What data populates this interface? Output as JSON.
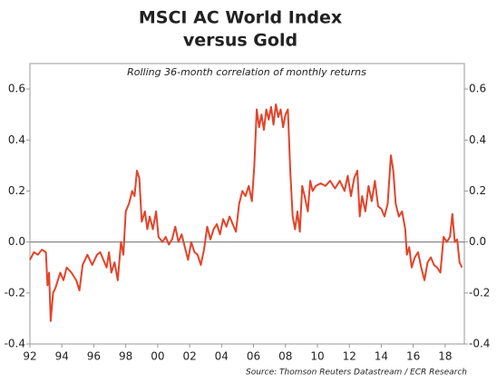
{
  "chart_data": {
    "type": "line",
    "title": [
      "MSCI AC World Index",
      "versus Gold"
    ],
    "subtitle": "Rolling 36-month correlation of monthly returns",
    "source": "Source: Thomson Reuters Datastream / ECR Research",
    "xlim": [
      1992,
      2019.2
    ],
    "xticks": [
      {
        "value": 1992,
        "label": "92"
      },
      {
        "value": 1994,
        "label": "94"
      },
      {
        "value": 1996,
        "label": "96"
      },
      {
        "value": 1998,
        "label": "98"
      },
      {
        "value": 2000,
        "label": "00"
      },
      {
        "value": 2002,
        "label": "02"
      },
      {
        "value": 2004,
        "label": "04"
      },
      {
        "value": 2006,
        "label": "06"
      },
      {
        "value": 2008,
        "label": "08"
      },
      {
        "value": 2010,
        "label": "10"
      },
      {
        "value": 2012,
        "label": "12"
      },
      {
        "value": 2014,
        "label": "14"
      },
      {
        "value": 2016,
        "label": "16"
      },
      {
        "value": 2018,
        "label": "18"
      }
    ],
    "ylim": [
      -0.4,
      0.7
    ],
    "yticks": [
      -0.4,
      -0.2,
      {
        "value": 0,
        "label": "0.0"
      },
      0.2,
      0.4,
      0.6
    ],
    "zero_line": true,
    "color": "#e2442b",
    "x": [
      1992.0,
      1992.25,
      1992.5,
      1992.75,
      1993.0,
      1993.1,
      1993.2,
      1993.3,
      1993.45,
      1993.6,
      1993.9,
      1994.1,
      1994.3,
      1994.6,
      1994.9,
      1995.1,
      1995.3,
      1995.6,
      1995.9,
      1996.2,
      1996.4,
      1996.6,
      1996.8,
      1996.95,
      1997.1,
      1997.3,
      1997.5,
      1997.7,
      1997.85,
      1998.0,
      1998.2,
      1998.4,
      1998.55,
      1998.7,
      1998.85,
      1999.0,
      1999.2,
      1999.35,
      1999.5,
      1999.7,
      1999.9,
      2000.05,
      2000.3,
      2000.5,
      2000.7,
      2000.9,
      2001.1,
      2001.3,
      2001.5,
      2001.7,
      2001.9,
      2002.1,
      2002.3,
      2002.5,
      2002.7,
      2002.9,
      2003.1,
      2003.3,
      2003.5,
      2003.7,
      2003.9,
      2004.1,
      2004.3,
      2004.5,
      2004.7,
      2004.9,
      2005.1,
      2005.3,
      2005.5,
      2005.7,
      2005.9,
      2006.05,
      2006.2,
      2006.35,
      2006.5,
      2006.65,
      2006.8,
      2006.95,
      2007.1,
      2007.25,
      2007.4,
      2007.55,
      2007.7,
      2007.85,
      2008.0,
      2008.15,
      2008.3,
      2008.45,
      2008.6,
      2008.75,
      2008.9,
      2009.05,
      2009.2,
      2009.4,
      2009.55,
      2009.7,
      2009.9,
      2010.2,
      2010.5,
      2010.8,
      2011.1,
      2011.4,
      2011.7,
      2011.9,
      2012.1,
      2012.3,
      2012.5,
      2012.65,
      2012.8,
      2013.0,
      2013.2,
      2013.4,
      2013.6,
      2013.8,
      2014.0,
      2014.2,
      2014.4,
      2014.6,
      2014.75,
      2014.9,
      2015.1,
      2015.3,
      2015.5,
      2015.6,
      2015.75,
      2015.9,
      2016.1,
      2016.3,
      2016.5,
      2016.7,
      2016.9,
      2017.1,
      2017.3,
      2017.5,
      2017.7,
      2017.9,
      2018.1,
      2018.3,
      2018.45,
      2018.6,
      2018.75,
      2018.9,
      2019.05
    ],
    "values": [
      -0.07,
      -0.04,
      -0.05,
      -0.03,
      -0.04,
      -0.17,
      -0.12,
      -0.31,
      -0.2,
      -0.18,
      -0.12,
      -0.15,
      -0.1,
      -0.12,
      -0.15,
      -0.19,
      -0.09,
      -0.05,
      -0.09,
      -0.05,
      -0.04,
      -0.07,
      -0.1,
      -0.04,
      -0.12,
      -0.08,
      -0.15,
      0.0,
      -0.05,
      0.12,
      0.15,
      0.2,
      0.18,
      0.28,
      0.25,
      0.08,
      0.12,
      0.05,
      0.1,
      0.05,
      0.12,
      0.02,
      0.0,
      0.02,
      -0.01,
      0.01,
      0.06,
      0.0,
      0.03,
      -0.02,
      -0.07,
      0.0,
      -0.04,
      -0.05,
      -0.09,
      -0.03,
      0.06,
      0.01,
      0.05,
      0.07,
      0.03,
      0.09,
      0.06,
      0.1,
      0.07,
      0.04,
      0.15,
      0.2,
      0.18,
      0.22,
      0.16,
      0.3,
      0.52,
      0.45,
      0.5,
      0.44,
      0.52,
      0.48,
      0.53,
      0.46,
      0.54,
      0.49,
      0.52,
      0.45,
      0.5,
      0.52,
      0.28,
      0.1,
      0.05,
      0.12,
      0.04,
      0.22,
      0.18,
      0.12,
      0.24,
      0.2,
      0.22,
      0.23,
      0.22,
      0.24,
      0.21,
      0.24,
      0.2,
      0.26,
      0.18,
      0.25,
      0.28,
      0.1,
      0.18,
      0.12,
      0.22,
      0.16,
      0.24,
      0.14,
      0.13,
      0.1,
      0.15,
      0.34,
      0.28,
      0.15,
      0.1,
      0.12,
      0.05,
      -0.05,
      -0.02,
      -0.1,
      -0.06,
      -0.04,
      -0.1,
      -0.15,
      -0.08,
      -0.06,
      -0.09,
      -0.1,
      -0.12,
      0.02,
      0.0,
      0.02,
      0.11,
      0.0,
      0.01,
      -0.08,
      -0.1
    ]
  }
}
